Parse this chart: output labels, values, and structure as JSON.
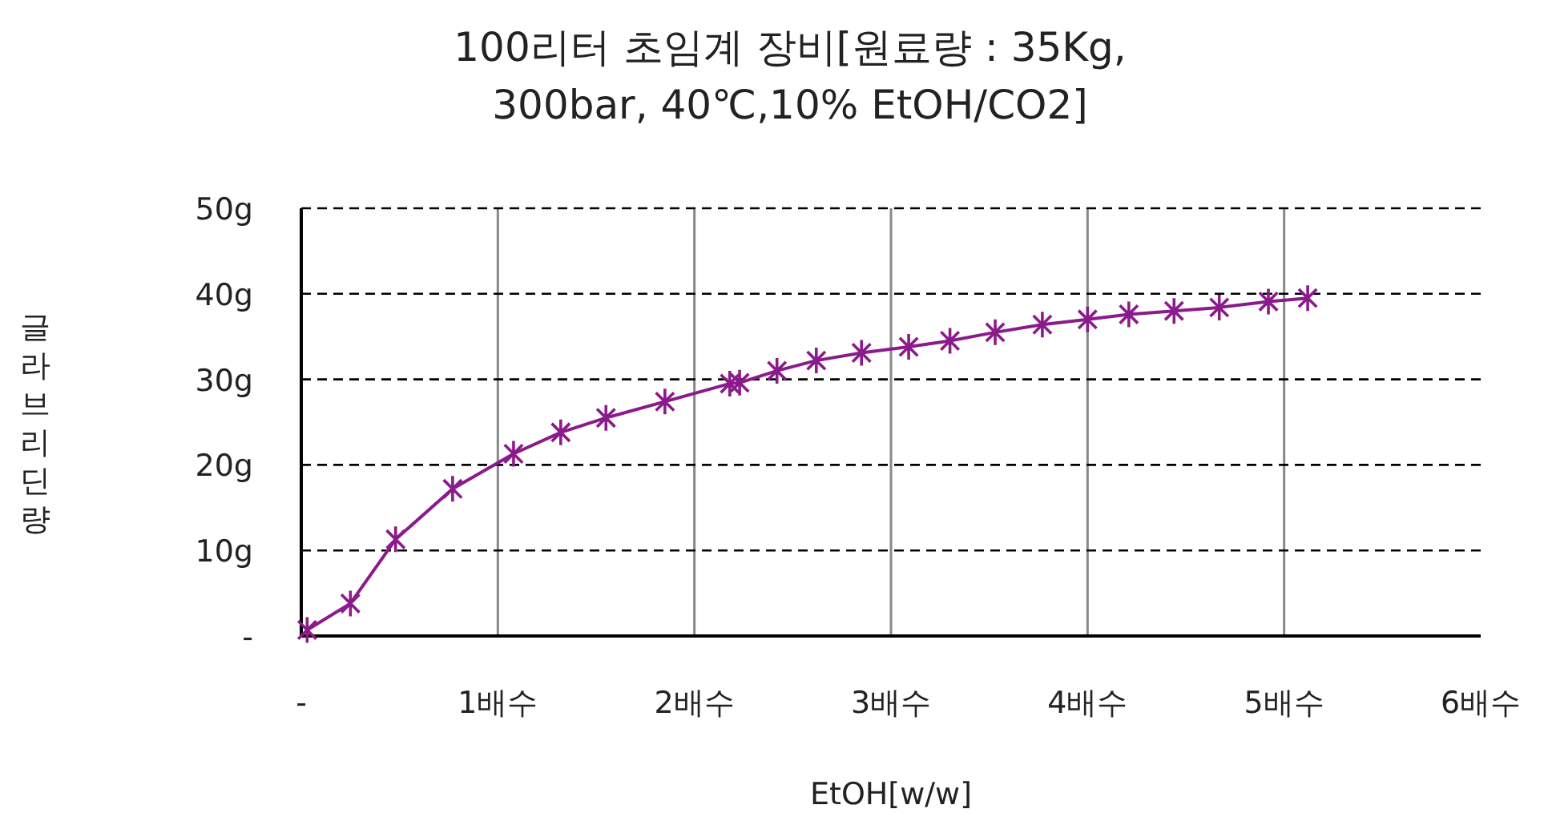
{
  "chart_data": {
    "type": "line",
    "title": "100리터  초임계 장비[원료량 : 35Kg,\n300bar,  40℃,10%  EtOH/CO2]",
    "xlabel": "EtOH[w/w]",
    "ylabel": "글라브리딘량",
    "series": [
      {
        "color": "#8b1a8b",
        "marker": "cross",
        "line_style": "solid",
        "x": [
          0.03,
          0.25,
          0.48,
          0.77,
          1.08,
          1.32,
          1.55,
          1.85,
          2.18,
          2.23,
          2.42,
          2.62,
          2.85,
          3.09,
          3.3,
          3.53,
          3.77,
          4.0,
          4.21,
          4.44,
          4.67,
          4.92,
          5.12
        ],
        "values": [
          0.7,
          3.8,
          11.3,
          17.2,
          21.3,
          23.8,
          25.5,
          27.4,
          29.5,
          29.6,
          31.0,
          32.2,
          33.1,
          33.8,
          34.5,
          35.5,
          36.4,
          37.0,
          37.6,
          38.0,
          38.4,
          39.1,
          39.5
        ]
      }
    ],
    "xlim": [
      0,
      6
    ],
    "xticks": [
      {
        "value": 0,
        "label": "-"
      },
      {
        "value": 1,
        "label": "1배수"
      },
      {
        "value": 2,
        "label": "2배수"
      },
      {
        "value": 3,
        "label": "3배수"
      },
      {
        "value": 4,
        "label": "4배수"
      },
      {
        "value": 5,
        "label": "5배수"
      },
      {
        "value": 6,
        "label": "6배수"
      }
    ],
    "ylim": [
      0,
      50
    ],
    "yticks": [
      {
        "value": 0,
        "label": "-"
      },
      {
        "value": 10,
        "label": "10g"
      },
      {
        "value": 20,
        "label": "20g"
      },
      {
        "value": 30,
        "label": "30g"
      },
      {
        "value": 40,
        "label": "40g"
      },
      {
        "value": 50,
        "label": "50g"
      }
    ],
    "grid": true
  }
}
